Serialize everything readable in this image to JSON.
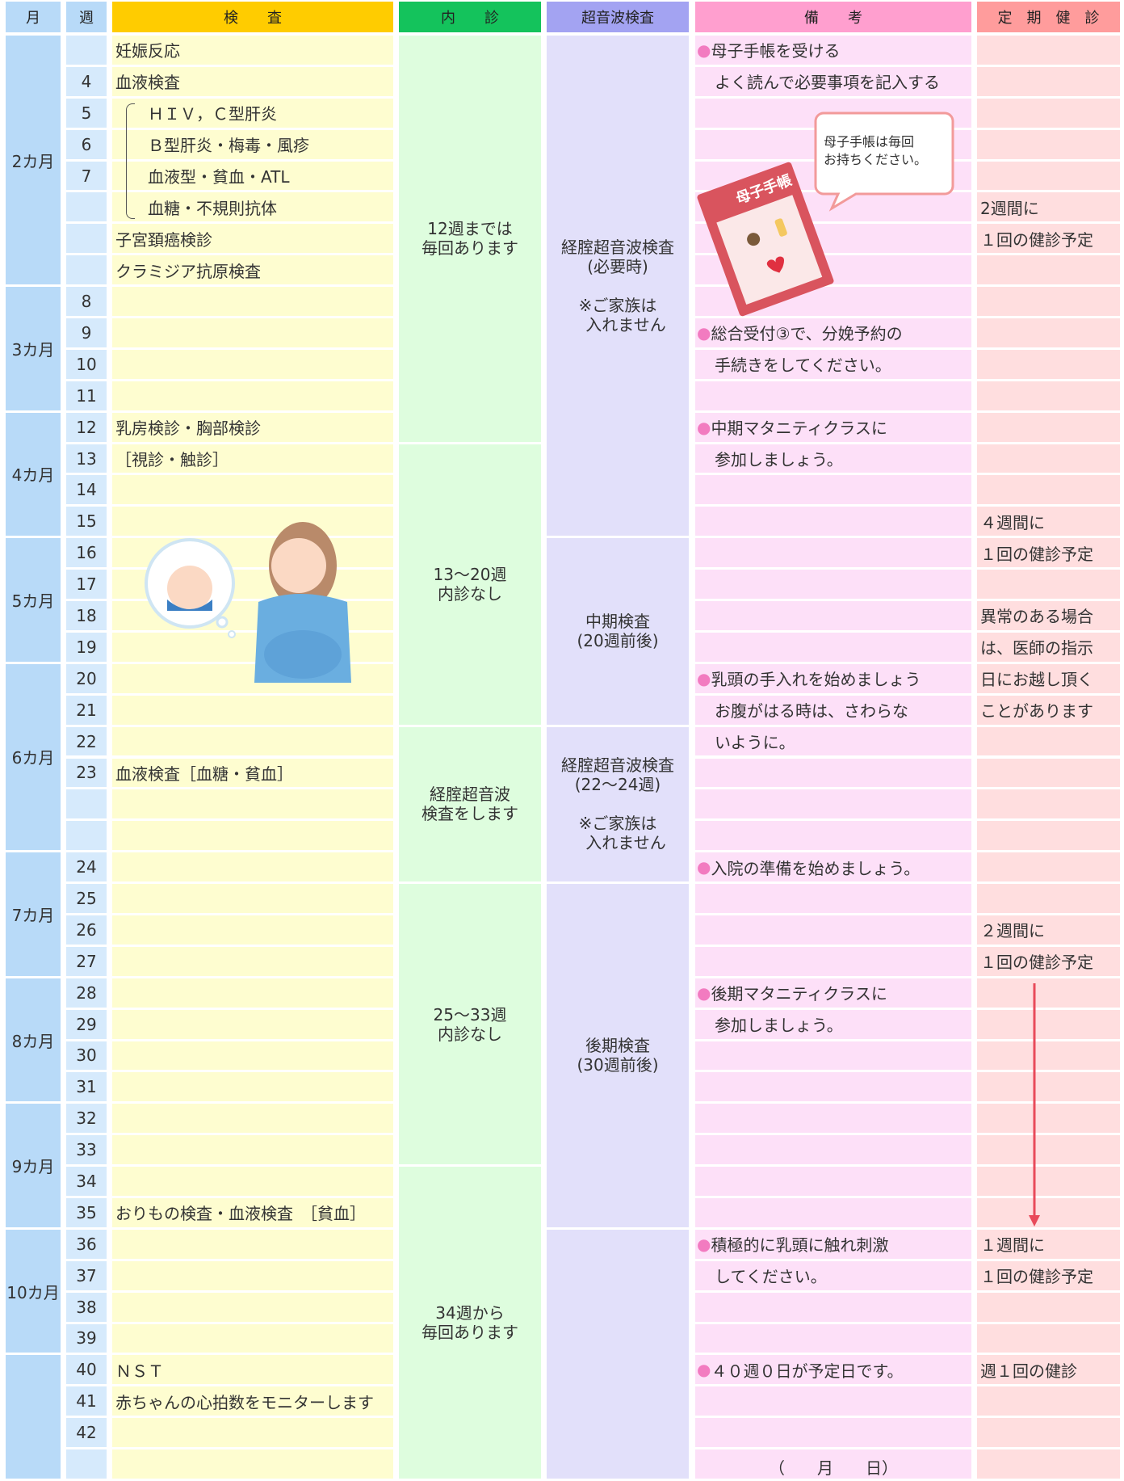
{
  "header": {
    "month": "月",
    "week": "週",
    "exam": "検　　査",
    "internal": "内　　診",
    "ultrasound": "超音波検査",
    "remarks": "備　　考",
    "checkup": "定　期　健　診"
  },
  "months": [
    {
      "label": "2カ月",
      "rows": [
        {
          "week": "",
          "exam": "妊娠反応",
          "remark": "母子手帳を受ける",
          "bullet": true,
          "checkup": ""
        },
        {
          "week": "4",
          "exam": "血液検査",
          "remark": "よく読んで必要事項を記入する",
          "checkup": ""
        },
        {
          "week": "5",
          "exam": "ＨＩＶ，Ｃ型肝炎",
          "indent": true,
          "remark": "",
          "checkup": ""
        },
        {
          "week": "6",
          "exam": "Ｂ型肝炎・梅毒・風疹",
          "indent": true,
          "remark": "",
          "checkup": ""
        },
        {
          "week": "7",
          "exam": "血液型・貧血・ATL",
          "indent": true,
          "remark": "",
          "checkup": ""
        },
        {
          "week": "",
          "exam": "血糖・不規則抗体",
          "indent": true,
          "remark": "",
          "checkup": "2週間に"
        },
        {
          "week": "",
          "exam": "子宮頚癌検診",
          "remark": "",
          "checkup": "１回の健診予定"
        },
        {
          "week": "",
          "exam": "クラミジア抗原検査",
          "remark": "",
          "checkup": ""
        }
      ]
    },
    {
      "label": "3カ月",
      "rows": [
        {
          "week": "8",
          "exam": "",
          "remark": "",
          "checkup": ""
        },
        {
          "week": "9",
          "exam": "",
          "remark": "総合受付③で、分娩予約の",
          "bullet": true,
          "checkup": ""
        },
        {
          "week": "10",
          "exam": "",
          "remark": "手続きをしてください。",
          "checkup": ""
        },
        {
          "week": "11",
          "exam": "",
          "remark": "",
          "checkup": ""
        }
      ]
    },
    {
      "label": "4カ月",
      "rows": [
        {
          "week": "12",
          "exam": "乳房検診・胸部検診",
          "remark": "中期マタニティクラスに",
          "bullet": true,
          "checkup": ""
        },
        {
          "week": "13",
          "exam": "［視診・触診］",
          "remark": "参加しましょう。",
          "checkup": ""
        },
        {
          "week": "14",
          "exam": "",
          "remark": "",
          "checkup": ""
        },
        {
          "week": "15",
          "exam": "",
          "remark": "",
          "checkup": "４週間に"
        }
      ]
    },
    {
      "label": "5カ月",
      "rows": [
        {
          "week": "16",
          "exam": "",
          "remark": "",
          "checkup": "１回の健診予定"
        },
        {
          "week": "17",
          "exam": "",
          "remark": "",
          "checkup": ""
        },
        {
          "week": "18",
          "exam": "",
          "remark": "",
          "checkup": "異常のある場合"
        },
        {
          "week": "19",
          "exam": "",
          "remark": "",
          "checkup": "は、医師の指示"
        }
      ]
    },
    {
      "label": "6カ月",
      "rows": [
        {
          "week": "20",
          "exam": "",
          "remark": "乳頭の手入れを始めましょう",
          "bullet": true,
          "checkup": "日にお越し頂く"
        },
        {
          "week": "21",
          "exam": "",
          "remark": "お腹がはる時は、さわらな",
          "checkup": "ことがあります"
        },
        {
          "week": "22",
          "exam": "",
          "remark": "いように。",
          "checkup": ""
        },
        {
          "week": "23",
          "exam": "血液検査［血糖・貧血］",
          "remark": "",
          "checkup": ""
        },
        {
          "week": "",
          "exam": "",
          "remark": "",
          "checkup": ""
        },
        {
          "week": "",
          "exam": "",
          "remark": "",
          "checkup": ""
        }
      ]
    },
    {
      "label": "7カ月",
      "rows": [
        {
          "week": "24",
          "exam": "",
          "remark": "入院の準備を始めましょう。",
          "bullet": true,
          "checkup": ""
        },
        {
          "week": "25",
          "exam": "",
          "remark": "",
          "checkup": ""
        },
        {
          "week": "26",
          "exam": "",
          "remark": "",
          "checkup": "２週間に"
        },
        {
          "week": "27",
          "exam": "",
          "remark": "",
          "checkup": "１回の健診予定"
        }
      ]
    },
    {
      "label": "8カ月",
      "rows": [
        {
          "week": "28",
          "exam": "",
          "remark": "後期マタニティクラスに",
          "bullet": true,
          "checkup": ""
        },
        {
          "week": "29",
          "exam": "",
          "remark": "参加しましょう。",
          "checkup": ""
        },
        {
          "week": "30",
          "exam": "",
          "remark": "",
          "checkup": ""
        },
        {
          "week": "31",
          "exam": "",
          "remark": "",
          "checkup": ""
        }
      ]
    },
    {
      "label": "9カ月",
      "rows": [
        {
          "week": "32",
          "exam": "",
          "remark": "",
          "checkup": ""
        },
        {
          "week": "33",
          "exam": "",
          "remark": "",
          "checkup": ""
        },
        {
          "week": "34",
          "exam": "",
          "remark": "",
          "checkup": ""
        },
        {
          "week": "35",
          "exam": "おりもの検査・血液検査　［貧血］",
          "remark": "",
          "checkup": ""
        }
      ]
    },
    {
      "label": "10カ月",
      "rows": [
        {
          "week": "36",
          "exam": "",
          "remark": "積極的に乳頭に触れ刺激",
          "bullet": true,
          "checkup": "１週間に"
        },
        {
          "week": "37",
          "exam": "",
          "remark": "してください。",
          "checkup": "１回の健診予定"
        },
        {
          "week": "38",
          "exam": "",
          "remark": "",
          "checkup": ""
        },
        {
          "week": "39",
          "exam": "",
          "remark": "",
          "checkup": ""
        }
      ]
    },
    {
      "label": null,
      "rows": [
        {
          "week": "40",
          "exam": "ＮＳＴ",
          "remark": "４０週０日が予定日です。",
          "bullet": true,
          "checkup": "週１回の健診"
        },
        {
          "week": "41",
          "exam": "赤ちゃんの心拍数をモニターします",
          "remark": "",
          "checkup": ""
        },
        {
          "week": "42",
          "exam": "",
          "remark": "",
          "checkup": ""
        },
        {
          "week": "",
          "exam": "",
          "remark": "（　　月　　日）",
          "checkup": ""
        }
      ]
    }
  ],
  "internal": [
    {
      "span": 13,
      "lines": [
        "12週までは",
        "毎回あります"
      ]
    },
    {
      "span": 9,
      "lines": [
        "13〜20週",
        "内診なし"
      ]
    },
    {
      "span": 5,
      "lines": [
        "経腟超音波",
        "検査をします"
      ]
    },
    {
      "span": 9,
      "lines": [
        "25〜33週",
        "内診なし"
      ]
    },
    {
      "span": 10,
      "lines": [
        "34週から",
        "毎回あります"
      ]
    }
  ],
  "ultrasound": [
    {
      "span": 16,
      "lines": [
        "経腟超音波検査",
        "(必要時)",
        "",
        "※ご家族は",
        "　入れません"
      ]
    },
    {
      "span": 6,
      "lines": [
        "中期検査",
        "(20週前後)"
      ]
    },
    {
      "span": 5,
      "lines": [
        "経腟超音波検査",
        "(22〜24週)",
        "",
        "※ご家族は",
        "　入れません"
      ]
    },
    {
      "span": 11,
      "lines": [
        "後期検査",
        "(30週前後)"
      ]
    },
    {
      "span": 8,
      "lines": []
    }
  ],
  "bubble": [
    "母子手帳は毎回",
    "お持ちください。"
  ],
  "book_title": "母子手帳"
}
